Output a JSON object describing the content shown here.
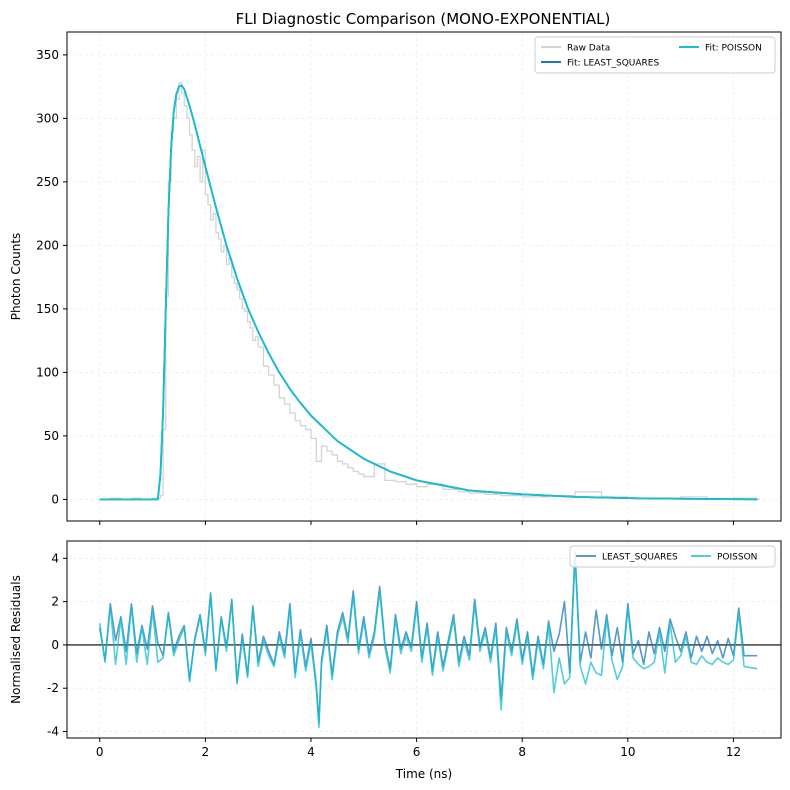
{
  "figure": {
    "title": "FLI Diagnostic Comparison (MONO-EXPONENTIAL)"
  },
  "chart_data": [
    {
      "type": "line",
      "panel": "top",
      "title": "FLI Diagnostic Comparison (MONO-EXPONENTIAL)",
      "xlabel": "",
      "ylabel": "Photon Counts",
      "xlim": [
        -0.62,
        12.9
      ],
      "ylim": [
        -17,
        368
      ],
      "xticks": [
        0,
        2,
        4,
        6,
        8,
        10,
        12
      ],
      "xticklabels_visible": false,
      "yticks": [
        0,
        50,
        100,
        150,
        200,
        250,
        300,
        350
      ],
      "grid": true,
      "legend": {
        "position": "top-right",
        "columns": 2,
        "entries": [
          "Raw Data",
          "Fit: LEAST_SQUARES",
          "Fit: POISSON"
        ]
      },
      "series": [
        {
          "name": "Raw Data",
          "style": "step",
          "color": "#d3d3d3",
          "x": [
            0,
            0.2,
            0.4,
            0.6,
            0.8,
            1.0,
            1.15,
            1.2,
            1.25,
            1.3,
            1.35,
            1.4,
            1.45,
            1.5,
            1.55,
            1.6,
            1.65,
            1.7,
            1.75,
            1.8,
            1.85,
            1.9,
            1.95,
            2.0,
            2.05,
            2.1,
            2.15,
            2.2,
            2.25,
            2.3,
            2.35,
            2.4,
            2.45,
            2.5,
            2.55,
            2.6,
            2.65,
            2.7,
            2.75,
            2.8,
            2.85,
            2.9,
            2.95,
            3.0,
            3.1,
            3.2,
            3.3,
            3.4,
            3.5,
            3.6,
            3.7,
            3.8,
            3.9,
            4.0,
            4.1,
            4.2,
            4.3,
            4.4,
            4.5,
            4.6,
            4.7,
            4.8,
            4.9,
            5.0,
            5.2,
            5.4,
            5.6,
            5.8,
            6.0,
            6.2,
            6.5,
            6.8,
            7.0,
            7.3,
            7.6,
            8.0,
            8.5,
            9.0,
            9.5,
            10.0,
            10.5,
            11.0,
            11.5,
            12.0,
            12.45
          ],
          "y": [
            0,
            1,
            0,
            1,
            0,
            1,
            3,
            55,
            160,
            250,
            290,
            300,
            315,
            328,
            320,
            310,
            300,
            287,
            275,
            262,
            270,
            250,
            275,
            240,
            232,
            220,
            225,
            210,
            205,
            195,
            200,
            185,
            190,
            175,
            170,
            165,
            158,
            150,
            148,
            140,
            135,
            125,
            128,
            120,
            105,
            98,
            90,
            80,
            75,
            68,
            62,
            58,
            55,
            48,
            30,
            42,
            38,
            35,
            30,
            28,
            25,
            22,
            20,
            18,
            28,
            15,
            14,
            12,
            10,
            12,
            8,
            6,
            5,
            4,
            3,
            2,
            3,
            6,
            2,
            1,
            1,
            2,
            0,
            1,
            0
          ]
        },
        {
          "name": "Fit: LEAST_SQUARES",
          "color": "#1f77b4",
          "x": [
            0,
            1.1,
            1.15,
            1.2,
            1.25,
            1.3,
            1.35,
            1.4,
            1.45,
            1.5,
            1.55,
            1.6,
            1.7,
            1.8,
            2.0,
            2.2,
            2.4,
            2.6,
            2.8,
            3.0,
            3.2,
            3.4,
            3.6,
            3.8,
            4.0,
            4.5,
            5.0,
            5.5,
            6.0,
            6.5,
            7.0,
            8.0,
            9.0,
            10.0,
            11.0,
            12.45
          ],
          "y": [
            0,
            0,
            20,
            70,
            150,
            225,
            275,
            305,
            319,
            325,
            326,
            323,
            310,
            295,
            262,
            230,
            200,
            174,
            151,
            132,
            115,
            100,
            87,
            76,
            66,
            46,
            32,
            22,
            15,
            11,
            7,
            4,
            2,
            1,
            0.5,
            0
          ]
        },
        {
          "name": "Fit: POISSON",
          "color": "#17becf",
          "x": [
            0,
            1.1,
            1.15,
            1.2,
            1.25,
            1.3,
            1.35,
            1.4,
            1.45,
            1.5,
            1.55,
            1.6,
            1.7,
            1.8,
            2.0,
            2.2,
            2.4,
            2.6,
            2.8,
            3.0,
            3.2,
            3.4,
            3.6,
            3.8,
            4.0,
            4.5,
            5.0,
            5.5,
            6.0,
            6.5,
            7.0,
            8.0,
            9.0,
            10.0,
            11.0,
            12.45
          ],
          "y": [
            0,
            0,
            20,
            70,
            150,
            225,
            275,
            305,
            319,
            325,
            326,
            323,
            310,
            295,
            262,
            230,
            200,
            174,
            151,
            132,
            115,
            100,
            87,
            76,
            66,
            46,
            32,
            22,
            15,
            11,
            7,
            4,
            2,
            1,
            0.5,
            0
          ]
        }
      ]
    },
    {
      "type": "line",
      "panel": "bottom",
      "title": "",
      "xlabel": "Time (ns)",
      "ylabel": "Normalised Residuals",
      "xlim": [
        -0.62,
        12.9
      ],
      "ylim": [
        -4.3,
        4.8
      ],
      "xticks": [
        0,
        2,
        4,
        6,
        8,
        10,
        12
      ],
      "yticks": [
        -4,
        -2,
        0,
        2,
        4
      ],
      "zero_line": 0,
      "grid": true,
      "legend": {
        "position": "top-right",
        "columns": 2,
        "entries": [
          "LEAST_SQUARES",
          "POISSON"
        ]
      },
      "series": [
        {
          "name": "LEAST_SQUARES",
          "color": "#1f77b4",
          "x": [
            0,
            0.1,
            0.2,
            0.3,
            0.4,
            0.5,
            0.6,
            0.7,
            0.8,
            0.9,
            1.0,
            1.1,
            1.2,
            1.3,
            1.4,
            1.5,
            1.6,
            1.7,
            1.8,
            1.9,
            2.0,
            2.1,
            2.2,
            2.3,
            2.4,
            2.5,
            2.6,
            2.7,
            2.8,
            2.9,
            3.0,
            3.1,
            3.2,
            3.3,
            3.4,
            3.5,
            3.6,
            3.7,
            3.8,
            3.9,
            4.0,
            4.1,
            4.15,
            4.2,
            4.3,
            4.4,
            4.5,
            4.6,
            4.7,
            4.8,
            4.9,
            5.0,
            5.1,
            5.2,
            5.3,
            5.4,
            5.5,
            5.6,
            5.7,
            5.8,
            5.9,
            6.0,
            6.1,
            6.2,
            6.3,
            6.4,
            6.5,
            6.6,
            6.7,
            6.8,
            6.9,
            7.0,
            7.1,
            7.2,
            7.3,
            7.4,
            7.5,
            7.6,
            7.7,
            7.8,
            7.9,
            8.0,
            8.1,
            8.2,
            8.3,
            8.4,
            8.5,
            8.6,
            8.7,
            8.8,
            8.9,
            9.0,
            9.1,
            9.2,
            9.3,
            9.4,
            9.5,
            9.6,
            9.7,
            9.8,
            9.9,
            10.0,
            10.1,
            10.2,
            10.3,
            10.4,
            10.5,
            10.6,
            10.7,
            10.8,
            10.9,
            11.0,
            11.1,
            11.2,
            11.3,
            11.4,
            11.5,
            11.6,
            11.7,
            11.8,
            11.9,
            12.0,
            12.1,
            12.2,
            12.45
          ],
          "y": [
            0.8,
            -0.7,
            1.9,
            0.2,
            1.3,
            -0.3,
            1.9,
            -0.4,
            0.9,
            -0.2,
            1.8,
            0.1,
            -0.5,
            1.5,
            -0.3,
            0.4,
            0.9,
            -1.6,
            0.3,
            1.4,
            -0.3,
            2.4,
            -1.1,
            1.3,
            -0.1,
            2.1,
            -1.7,
            0.5,
            -1.4,
            1.8,
            -0.8,
            0.4,
            -0.3,
            -0.9,
            0.6,
            -0.4,
            1.9,
            -1.3,
            0.7,
            -1.0,
            0.3,
            -1.8,
            -3.6,
            -0.7,
            0.9,
            -1.4,
            0.6,
            1.5,
            0.3,
            2.5,
            -0.2,
            1.3,
            -0.4,
            0.6,
            2.7,
            0.1,
            -1.1,
            1.4,
            -0.2,
            0.6,
            -0.1,
            2.0,
            -0.6,
            1.0,
            -1.2,
            0.6,
            -1.0,
            0.2,
            1.4,
            -0.8,
            0.4,
            -0.5,
            2.1,
            -0.1,
            0.8,
            -0.6,
            1.0,
            -2.5,
            0.8,
            -0.3,
            1.2,
            -0.7,
            0.6,
            -1.4,
            0.4,
            -0.9,
            1.1,
            -0.3,
            0.5,
            2.0,
            -1.3,
            4.3,
            -0.8,
            0.6,
            -0.6,
            1.6,
            -0.2,
            1.4,
            -0.5,
            0.8,
            -0.8,
            1.9,
            -0.4,
            0.2,
            -0.9,
            0.6,
            -0.4,
            0.8,
            -0.3,
            1.2,
            0.4,
            -0.3,
            0.6,
            -0.6,
            0.4,
            -0.3,
            0.4,
            -0.4,
            0.2,
            -0.6,
            0.3,
            -0.5,
            1.7,
            -0.5,
            -0.5
          ]
        },
        {
          "name": "POISSON",
          "color": "#17becf",
          "x": [
            0,
            0.1,
            0.2,
            0.3,
            0.4,
            0.5,
            0.6,
            0.7,
            0.8,
            0.9,
            1.0,
            1.1,
            1.2,
            1.3,
            1.4,
            1.5,
            1.6,
            1.7,
            1.8,
            1.9,
            2.0,
            2.1,
            2.2,
            2.3,
            2.4,
            2.5,
            2.6,
            2.7,
            2.8,
            2.9,
            3.0,
            3.1,
            3.2,
            3.3,
            3.4,
            3.5,
            3.6,
            3.7,
            3.8,
            3.9,
            4.0,
            4.1,
            4.15,
            4.2,
            4.3,
            4.4,
            4.5,
            4.6,
            4.7,
            4.8,
            4.9,
            5.0,
            5.1,
            5.2,
            5.3,
            5.4,
            5.5,
            5.6,
            5.7,
            5.8,
            5.9,
            6.0,
            6.1,
            6.2,
            6.3,
            6.4,
            6.5,
            6.6,
            6.7,
            6.8,
            6.9,
            7.0,
            7.1,
            7.2,
            7.3,
            7.4,
            7.5,
            7.6,
            7.7,
            7.8,
            7.9,
            8.0,
            8.1,
            8.2,
            8.3,
            8.4,
            8.5,
            8.6,
            8.7,
            8.8,
            8.9,
            9.0,
            9.1,
            9.2,
            9.3,
            9.4,
            9.5,
            9.6,
            9.7,
            9.8,
            9.9,
            10.0,
            10.1,
            10.2,
            10.3,
            10.4,
            10.5,
            10.6,
            10.7,
            10.8,
            10.9,
            11.0,
            11.1,
            11.2,
            11.3,
            11.4,
            11.5,
            11.6,
            11.7,
            11.8,
            11.9,
            12.0,
            12.1,
            12.2,
            12.45
          ],
          "y": [
            1.0,
            -0.8,
            1.8,
            -0.9,
            1.2,
            -0.9,
            1.8,
            -0.8,
            0.8,
            -0.9,
            1.6,
            -0.8,
            -0.6,
            1.4,
            -0.5,
            0.2,
            0.8,
            -1.7,
            0.2,
            1.3,
            -0.5,
            2.3,
            -1.2,
            1.2,
            -0.3,
            2.0,
            -1.8,
            0.3,
            -1.5,
            1.7,
            -1.0,
            0.2,
            -0.5,
            -1.0,
            0.4,
            -0.6,
            1.7,
            -1.5,
            0.5,
            -1.2,
            0.1,
            -2.0,
            -3.8,
            -0.9,
            0.7,
            -1.6,
            0.4,
            1.3,
            0.1,
            2.3,
            -0.4,
            1.1,
            -0.6,
            0.4,
            2.5,
            -0.1,
            -1.3,
            1.2,
            -0.4,
            0.4,
            -0.3,
            1.8,
            -0.8,
            0.8,
            -1.4,
            0.4,
            -1.2,
            0.0,
            1.2,
            -1.0,
            0.2,
            -0.7,
            1.9,
            -0.3,
            0.6,
            -0.8,
            0.8,
            -3.0,
            0.6,
            -0.5,
            1.0,
            -0.9,
            0.4,
            -1.6,
            0.2,
            -1.1,
            0.9,
            -2.2,
            -0.6,
            -1.8,
            -1.5,
            4.1,
            -1.0,
            -1.8,
            -0.8,
            -1.3,
            -1.4,
            1.2,
            -0.7,
            -1.6,
            -1.0,
            1.7,
            -0.6,
            -0.9,
            -1.1,
            -1.0,
            -0.8,
            0.6,
            -1.3,
            1.0,
            -0.8,
            -0.5,
            0.4,
            -0.8,
            -0.9,
            -0.5,
            -0.8,
            -0.9,
            -0.6,
            -0.8,
            -0.9,
            -0.7,
            1.5,
            -1.0,
            -1.1
          ]
        }
      ]
    }
  ]
}
